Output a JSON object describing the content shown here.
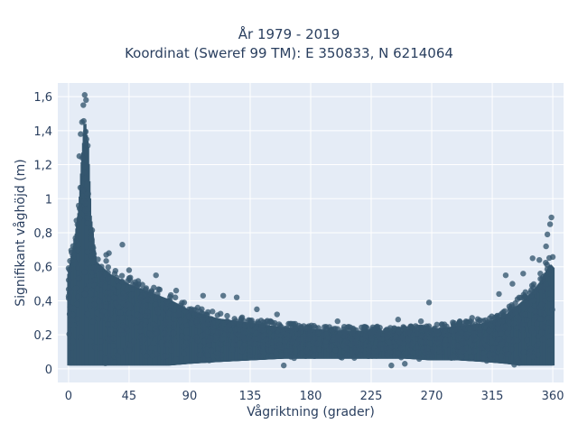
{
  "chart_data": {
    "type": "scatter",
    "title_line1": "År 1979 - 2019",
    "title_line2": "Koordinat (Sweref 99 TM): E 350833, N 6214064",
    "xlabel": "Vågriktning (grader)",
    "ylabel": "Signifikant våghöjd (m)",
    "xlim": [
      -8,
      368
    ],
    "ylim": [
      -0.08,
      1.68
    ],
    "x_ticks": [
      0,
      45,
      90,
      135,
      180,
      225,
      270,
      315,
      360
    ],
    "x_tick_labels": [
      "0",
      "45",
      "90",
      "135",
      "180",
      "225",
      "270",
      "315",
      "360"
    ],
    "y_ticks": [
      0,
      0.2,
      0.4,
      0.6,
      0.8,
      1,
      1.2,
      1.4,
      1.6
    ],
    "y_tick_labels": [
      "0",
      "0,2",
      "0,4",
      "0,6",
      "0,8",
      "1",
      "1,2",
      "1,4",
      "1,6"
    ],
    "grid": true,
    "colors": {
      "marker": "#34566e",
      "plot_background": "#e5ecf6",
      "grid": "#ffffff",
      "text": "#2a3f5f"
    },
    "series": [
      {
        "envelope": {
          "x": [
            0,
            5,
            8,
            10,
            12,
            14,
            16,
            20,
            30,
            45,
            60,
            75,
            90,
            110,
            135,
            160,
            180,
            200,
            225,
            250,
            270,
            290,
            310,
            325,
            335,
            345,
            352,
            358,
            360
          ],
          "y_max": [
            0.62,
            0.85,
            1.05,
            1.35,
            1.6,
            1.45,
            1.0,
            0.7,
            0.62,
            0.55,
            0.5,
            0.45,
            0.38,
            0.33,
            0.3,
            0.27,
            0.26,
            0.25,
            0.25,
            0.25,
            0.26,
            0.28,
            0.3,
            0.35,
            0.42,
            0.5,
            0.58,
            0.68,
            0.66
          ],
          "y_min": [
            0.02,
            0.02,
            0.02,
            0.02,
            0.02,
            0.02,
            0.02,
            0.02,
            0.02,
            0.02,
            0.02,
            0.02,
            0.03,
            0.04,
            0.05,
            0.06,
            0.06,
            0.06,
            0.06,
            0.06,
            0.05,
            0.05,
            0.04,
            0.03,
            0.02,
            0.02,
            0.02,
            0.02,
            0.02
          ]
        },
        "outliers": [
          {
            "x": 12,
            "y": 1.61
          },
          {
            "x": 13,
            "y": 1.58
          },
          {
            "x": 11,
            "y": 1.55
          },
          {
            "x": 10,
            "y": 1.45
          },
          {
            "x": 9,
            "y": 1.38
          },
          {
            "x": 8,
            "y": 1.25
          },
          {
            "x": 40,
            "y": 0.73
          },
          {
            "x": 30,
            "y": 0.68
          },
          {
            "x": 28,
            "y": 0.67
          },
          {
            "x": 45,
            "y": 0.58
          },
          {
            "x": 65,
            "y": 0.55
          },
          {
            "x": 80,
            "y": 0.46
          },
          {
            "x": 100,
            "y": 0.43
          },
          {
            "x": 115,
            "y": 0.43
          },
          {
            "x": 125,
            "y": 0.42
          },
          {
            "x": 140,
            "y": 0.35
          },
          {
            "x": 155,
            "y": 0.32
          },
          {
            "x": 200,
            "y": 0.28
          },
          {
            "x": 245,
            "y": 0.29
          },
          {
            "x": 262,
            "y": 0.28
          },
          {
            "x": 268,
            "y": 0.39
          },
          {
            "x": 300,
            "y": 0.3
          },
          {
            "x": 320,
            "y": 0.44
          },
          {
            "x": 325,
            "y": 0.55
          },
          {
            "x": 330,
            "y": 0.5
          },
          {
            "x": 338,
            "y": 0.56
          },
          {
            "x": 345,
            "y": 0.65
          },
          {
            "x": 350,
            "y": 0.64
          },
          {
            "x": 355,
            "y": 0.72
          },
          {
            "x": 356,
            "y": 0.79
          },
          {
            "x": 358,
            "y": 0.85
          },
          {
            "x": 359,
            "y": 0.89
          },
          {
            "x": 160,
            "y": 0.02
          },
          {
            "x": 240,
            "y": 0.02
          },
          {
            "x": 250,
            "y": 0.03
          }
        ]
      }
    ]
  }
}
